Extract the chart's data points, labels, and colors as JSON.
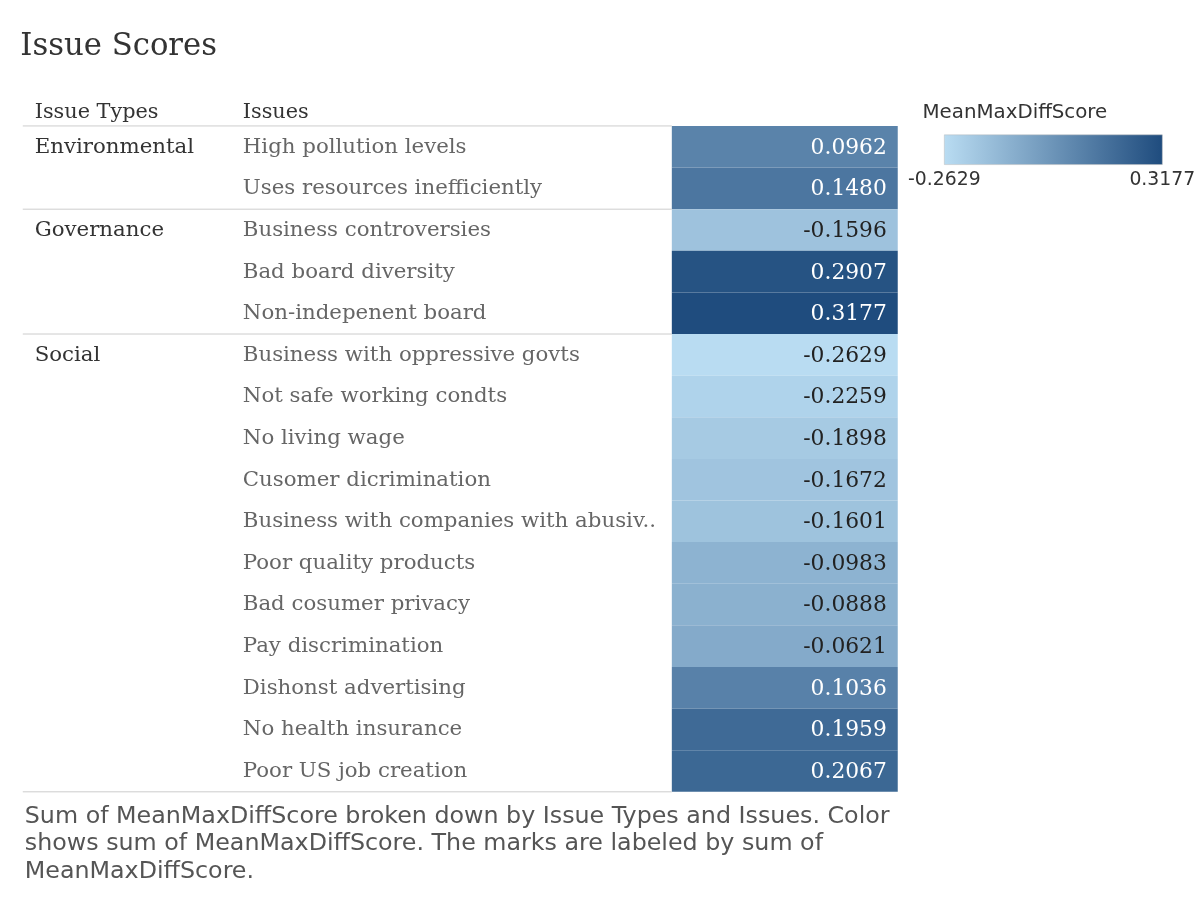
{
  "chart_data": {
    "type": "heatmap",
    "title": "Issue Scores",
    "ylabel": "Issues",
    "clabel": "MeanMaxDiffScore",
    "categories": [
      null
    ],
    "y_categories": [
      "High pollution levels",
      "Uses resources inefficiently",
      "Business controversies",
      "Bad board diversity",
      "Non-indepenent board",
      "Business with oppressive govts",
      "Not safe working condts",
      "No living wage",
      "Cusomer dicrimination",
      "Business with companies with abusiv..",
      "Poor quality products",
      "Bad cosumer privacy",
      "Pay discrimination",
      "Dishonst advertising",
      "No health insurance",
      "Poor US job creation"
    ],
    "y2_categories": [
      "Environmental",
      null,
      "Governance",
      null,
      null,
      "Social",
      null,
      null,
      null,
      null,
      null,
      null,
      null,
      null,
      null,
      null
    ],
    "cells": [
      [
        0.0962
      ],
      [
        0.148
      ],
      [
        -0.1596
      ],
      [
        0.2907
      ],
      [
        0.3177
      ],
      [
        -0.2629
      ],
      [
        -0.2259
      ],
      [
        -0.1898
      ],
      [
        -0.1672
      ],
      [
        -0.1601
      ],
      [
        -0.0983
      ],
      [
        -0.0888
      ],
      [
        -0.0621
      ],
      [
        0.1036
      ],
      [
        0.1959
      ],
      [
        0.2067
      ]
    ],
    "cell_labels": [
      [
        "0.0962"
      ],
      [
        "0.1480"
      ],
      [
        "-0.1596"
      ],
      [
        "0.2907"
      ],
      [
        "0.3177"
      ],
      [
        "-0.2629"
      ],
      [
        "-0.2259"
      ],
      [
        "-0.1898"
      ],
      [
        "-0.1672"
      ],
      [
        "-0.1601"
      ],
      [
        "-0.0983"
      ],
      [
        "-0.0888"
      ],
      [
        "-0.0621"
      ],
      [
        "0.1036"
      ],
      [
        "0.1959"
      ],
      [
        "0.2067"
      ]
    ],
    "clim": [
      -0.2629,
      0.3177
    ],
    "cticks": [
      -0.2629,
      0.3177
    ],
    "colors": [
      "#b9dcf2",
      "#1f4c7e"
    ],
    "annotations": [
      "Issue Types",
      "Sum of MeanMaxDiffScore broken down by Issue Types and Issues.  Color shows sum of MeanMaxDiffScore.  The marks are labeled by sum of MeanMaxDiffScore."
    ]
  }
}
